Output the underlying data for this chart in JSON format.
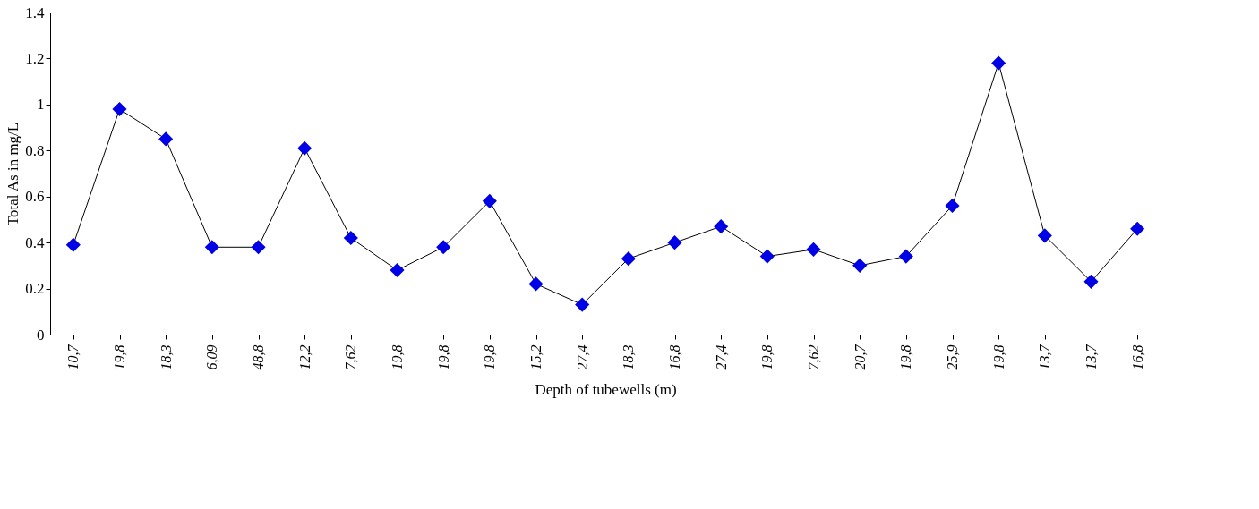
{
  "chart_data": {
    "type": "line",
    "xlabel": "Depth of tubewells (m)",
    "ylabel": "Total  As in mg/L",
    "categories": [
      "10,7",
      "19,8",
      "18,3",
      "6,09",
      "48,8",
      "12,2",
      "7,62",
      "19,8",
      "19,8",
      "19,8",
      "15,2",
      "27,4",
      "18,3",
      "16,8",
      "27,4",
      "19,8",
      "7,62",
      "20,7",
      "19,8",
      "25,9",
      "19,8",
      "13,7",
      "13,7",
      "16,8"
    ],
    "series": [
      {
        "color": "#0000e6",
        "values": [
          0.39,
          0.98,
          0.85,
          0.38,
          0.38,
          0.81,
          0.42,
          0.28,
          0.38,
          0.58,
          0.22,
          0.13,
          0.33,
          0.4,
          0.47,
          0.34,
          0.37,
          0.3,
          0.34,
          0.56,
          1.18,
          0.43,
          0.23,
          0.46
        ]
      }
    ],
    "ylim": [
      0,
      1.4
    ],
    "yticks": [
      0,
      0.2,
      0.4,
      0.6,
      0.8,
      1,
      1.2,
      1.4
    ],
    "grid": false,
    "marker": "diamond",
    "line_style": "solid"
  }
}
